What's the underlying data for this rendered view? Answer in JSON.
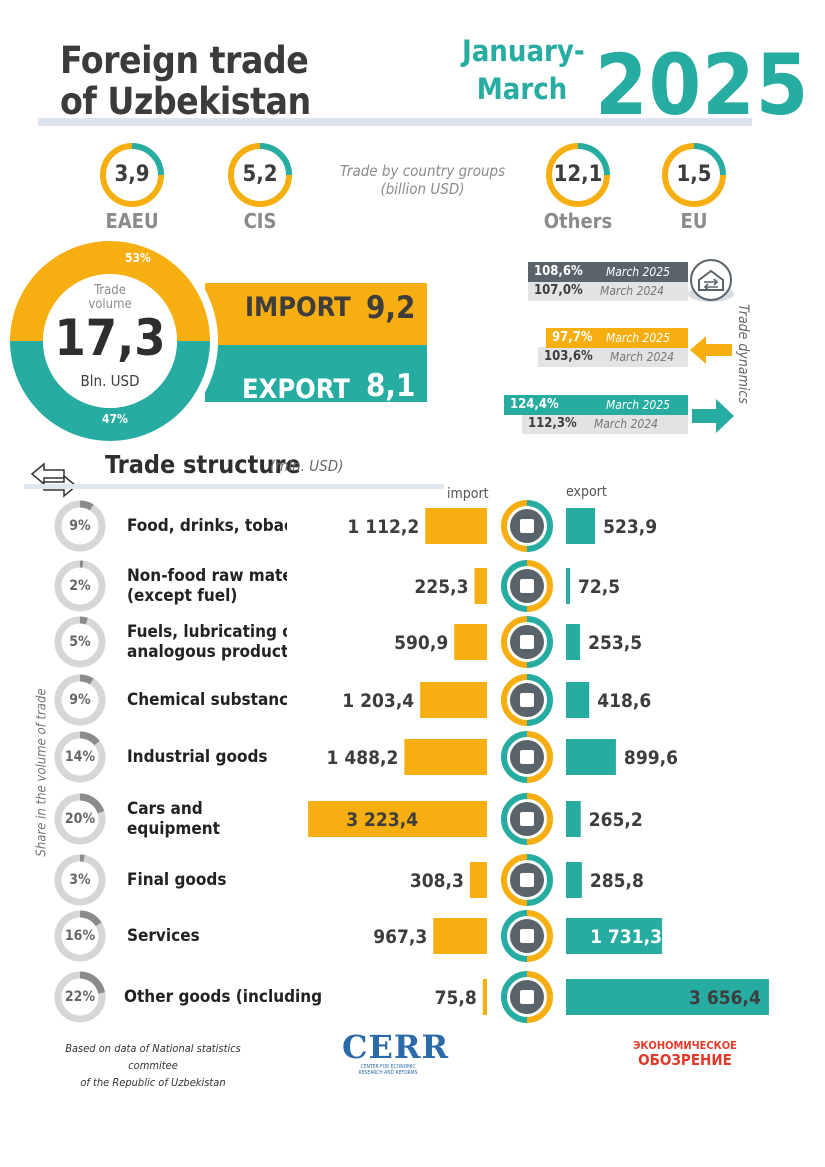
{
  "header": {
    "title_line1": "Foreign trade",
    "title_line2": "of Uzbekistan",
    "period_line1": "January-",
    "period_line2": "March",
    "year": "2025"
  },
  "country_groups": {
    "caption_line1": "Trade by country groups",
    "caption_line2": "(billion USD)",
    "items": [
      {
        "name": "EAEU",
        "value": "3,9"
      },
      {
        "name": "CIS",
        "value": "5,2"
      },
      {
        "name": "Others",
        "value": "12,1"
      },
      {
        "name": "EU",
        "value": "1,5"
      }
    ]
  },
  "trade_volume": {
    "label_line1": "Trade",
    "label_line2": "volume",
    "value": "17,3",
    "unit": "Bln. USD",
    "import_share": "53%",
    "export_share": "47%",
    "import_label": "IMPORT",
    "import_value": "9,2",
    "export_label": "EXPORT",
    "export_value": "8,1"
  },
  "dynamics": {
    "title": "Trade dynamics",
    "rows": [
      {
        "current": "108,6%",
        "current_label": "March 2025",
        "previous": "107,0%",
        "previous_label": "March 2024"
      },
      {
        "current": "97,7%",
        "current_label": "March 2025",
        "previous": "103,6%",
        "previous_label": "March 2024"
      },
      {
        "current": "124,4%",
        "current_label": "March 2025",
        "previous": "112,3%",
        "previous_label": "March 2024"
      }
    ]
  },
  "structure": {
    "title": "Trade structure",
    "unit": "(mln. USD)",
    "import_head": "import",
    "export_head": "export",
    "side_label": "Share in the volume of trade"
  },
  "footer": {
    "source_line1": "Based on data of National statistics commitee",
    "source_line2": "of the Republic of Uzbekistan",
    "logo_cerr": "CERR",
    "logo_cerr_sub1": "CENTER FOR ECONOMIC",
    "logo_cerr_sub2": "RESEARCH AND REFORMS",
    "logo_eo1": "ЭКОНОМИЧЕСКОЕ",
    "logo_eo2": "ОБОЗРЕНИЕ"
  },
  "colors": {
    "import": "#f6ae10",
    "export": "#26aca1",
    "gray": "#8b8b8b",
    "dark": "#5a6369"
  },
  "chart_data": {
    "type": "bar",
    "categories": [
      "Food, drinks, tobacco",
      "Non-food raw materials (except fuel)",
      "Fuels, lubricating oils, analogous products",
      "Chemical substances",
      "Industrial goods",
      "Cars and equipment",
      "Final goods",
      "Services",
      "Other goods (including gold)"
    ],
    "category_lines": [
      [
        "Food, drinks, tobacco"
      ],
      [
        "Non-food raw materials",
        "(except fuel)"
      ],
      [
        "Fuels, lubricating oils,",
        "analogous products"
      ],
      [
        "Chemical substances"
      ],
      [
        "Industrial goods"
      ],
      [
        "Cars and",
        "equipment"
      ],
      [
        "Final goods"
      ],
      [
        "Services"
      ],
      [
        "Other goods (including gold)"
      ]
    ],
    "icons": [
      "food-icon",
      "box-icon",
      "fuel-barrel-icon",
      "flask-icon",
      "steel-beam-icon",
      "gears-icon",
      "tshirt-icon",
      "tools-icon",
      "gold-bars-icon"
    ],
    "shares": [
      "9%",
      "2%",
      "5%",
      "9%",
      "14%",
      "20%",
      "3%",
      "16%",
      "22%"
    ],
    "share_values": [
      9,
      2,
      5,
      9,
      14,
      20,
      3,
      16,
      22
    ],
    "series": [
      {
        "name": "import",
        "values": [
          1112.2,
          225.3,
          590.9,
          1203.4,
          1488.2,
          3223.4,
          308.3,
          967.3,
          75.8
        ],
        "labels": [
          "1 112,2",
          "225,3",
          "590,9",
          "1 203,4",
          "1 488,2",
          "3 223,4",
          "308,3",
          "967,3",
          "75,8"
        ]
      },
      {
        "name": "export",
        "values": [
          523.9,
          72.5,
          253.5,
          418.6,
          899.6,
          265.2,
          285.8,
          1731.3,
          3656.4
        ],
        "labels": [
          "523,9",
          "72,5",
          "253,5",
          "418,6",
          "899,6",
          "265,2",
          "285,8",
          "1 731,3",
          "3 656,4"
        ]
      }
    ],
    "title": "Trade structure",
    "ylabel": "(mln. USD)"
  }
}
